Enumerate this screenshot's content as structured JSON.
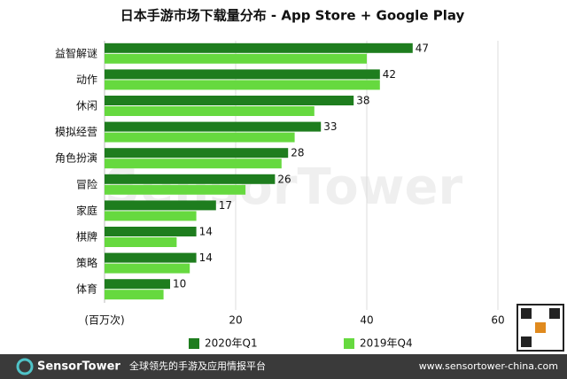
{
  "chart_data": {
    "type": "hbar",
    "title": "日本手游市场下载量分布 - App Store + Google Play",
    "x_label": "(百万次)",
    "categories": [
      "益智解谜",
      "动作",
      "休闲",
      "模拟经营",
      "角色扮演",
      "冒险",
      "家庭",
      "棋牌",
      "策略",
      "体育"
    ],
    "series": [
      {
        "name": "2020年Q1",
        "color": "#1e7d1e",
        "values": [
          47,
          42,
          38,
          33,
          28,
          26,
          17,
          14,
          14,
          10
        ]
      },
      {
        "name": "2019年Q4",
        "color": "#66d93f",
        "values": [
          40,
          42,
          32,
          29,
          27,
          21.5,
          14,
          11,
          13,
          9
        ]
      }
    ],
    "xlim": [
      0,
      60
    ],
    "xticks": [
      20,
      40,
      60
    ],
    "grid": true,
    "legend": "bottom"
  },
  "footer": {
    "brand": "SensorTower",
    "tagline": "全球领先的手游及应用情报平台",
    "url": "www.sensortower-china.com"
  }
}
